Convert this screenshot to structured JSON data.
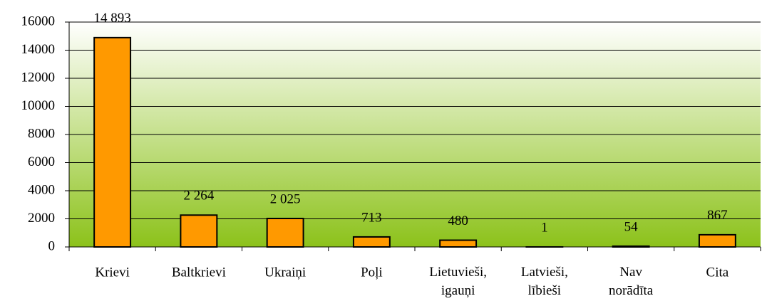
{
  "chart_data": {
    "type": "bar",
    "categories": [
      "Krievi",
      "Baltkrievi",
      "Ukraiņi",
      "Poļi",
      "Lietuvieši,\nigauņi",
      "Latvieši,\nlībieši",
      "Nav\nnorādīta",
      "Cita"
    ],
    "values": [
      14893,
      2264,
      2025,
      713,
      480,
      1,
      54,
      867
    ],
    "value_labels": [
      "14 893",
      "2 264",
      "2 025",
      "713",
      "480",
      "1",
      "54",
      "867"
    ],
    "color": "#ff9900",
    "ylim": [
      0,
      16000
    ],
    "yticks": [
      0,
      2000,
      4000,
      6000,
      8000,
      10000,
      12000,
      14000,
      16000
    ],
    "grid": true
  }
}
